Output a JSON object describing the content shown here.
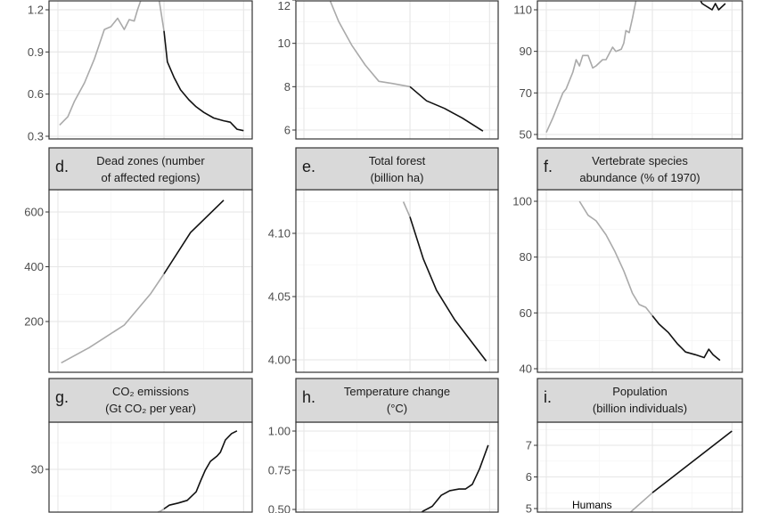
{
  "chart_data": [
    {
      "type": "line",
      "panel": "a",
      "yticks": [
        "0.3",
        "0.6",
        "0.9",
        "1.2"
      ],
      "ylim": [
        0.3,
        1.3
      ],
      "series": [
        {
          "color": "#aaaaaa",
          "x": [
            1960.5,
            1963,
            1965,
            1968,
            1971,
            1974,
            1976,
            1978,
            1980,
            1981.5,
            1983,
            1984,
            1985.5,
            1987,
            1990,
            1992
          ],
          "y": [
            0.38,
            0.44,
            0.55,
            0.68,
            0.85,
            1.06,
            1.08,
            1.14,
            1.06,
            1.13,
            1.12,
            1.2,
            1.3,
            1.4,
            1.35,
            1.05
          ]
        },
        {
          "color": "#111111",
          "x": [
            1992,
            1993,
            1995,
            1997,
            1999.5,
            2001.7,
            2004,
            2007,
            2010,
            2012,
            2014,
            2016
          ],
          "y": [
            1.05,
            0.83,
            0.72,
            0.63,
            0.56,
            0.51,
            0.47,
            0.43,
            0.41,
            0.4,
            0.35,
            0.34
          ]
        }
      ]
    },
    {
      "type": "line",
      "panel": "b",
      "yticks": [
        "6",
        "8",
        "10",
        "12"
      ],
      "ylim": [
        5.6,
        12
      ],
      "series": [
        {
          "color": "#aaaaaa",
          "x": [
            1964,
            1966.5,
            1970.5,
            1974.5,
            1978.5,
            1982.6,
            1986.6,
            1992
          ],
          "y": [
            13.5,
            12.5,
            11.0,
            9.9,
            9.0,
            8.25,
            8.15,
            8.0
          ]
        },
        {
          "color": "#111111",
          "x": [
            1992,
            1997,
            2002.4,
            2007.8,
            2014
          ],
          "y": [
            8.0,
            7.35,
            7.0,
            6.55,
            5.95
          ]
        }
      ]
    },
    {
      "type": "line",
      "panel": "c",
      "yticks": [
        "50",
        "70",
        "90",
        "110"
      ],
      "ylim": [
        48,
        115
      ],
      "series": [
        {
          "color": "#aaaaaa",
          "x": [
            1960,
            1962,
            1963.5,
            1965,
            1966,
            1968,
            1969,
            1970,
            1971,
            1972.6,
            1974,
            1975,
            1977,
            1978,
            1979,
            1980,
            1981,
            1982.6,
            1983.4,
            1984,
            1985,
            1986,
            1987,
            1988,
            1990,
            1992
          ],
          "y": [
            51,
            58,
            64,
            70,
            72,
            80,
            86,
            83,
            88,
            88,
            82,
            83,
            86,
            86,
            89,
            92,
            90,
            91,
            94,
            100,
            99,
            106,
            114,
            120,
            125,
            128
          ]
        },
        {
          "color": "#111111",
          "x": [
            1992,
            2000,
            2006,
            2007,
            2009,
            2010,
            2011,
            2012,
            2014
          ],
          "y": [
            128,
            124,
            116,
            113,
            111,
            110,
            113,
            110,
            113
          ]
        }
      ]
    },
    {
      "type": "line",
      "panel": "d",
      "title": [
        "Dead zones (number",
        "of affected regions)"
      ],
      "letter": "d.",
      "yticks": [
        "200",
        "400",
        "600"
      ],
      "ylim": [
        0,
        700
      ],
      "series": [
        {
          "color": "#aaaaaa",
          "x": [
            1961,
            1969.5,
            1980,
            1988,
            1992
          ],
          "y": [
            49,
            105,
            187,
            302,
            374
          ]
        },
        {
          "color": "#111111",
          "x": [
            1992,
            2000,
            2010
          ],
          "y": [
            374,
            525,
            643
          ]
        }
      ]
    },
    {
      "type": "line",
      "panel": "e",
      "title": [
        "Total forest",
        "(billion ha)"
      ],
      "letter": "e.",
      "yticks": [
        "4.00",
        "4.05",
        "4.10"
      ],
      "ylim": [
        3.99,
        4.135
      ],
      "series": [
        {
          "color": "#aaaaaa",
          "x": [
            1990,
            1992
          ],
          "y": [
            4.125,
            4.113
          ]
        },
        {
          "color": "#111111",
          "x": [
            1992,
            1996,
            2000,
            2005.4,
            2015
          ],
          "y": [
            4.113,
            4.08,
            4.055,
            4.032,
            3.999
          ]
        }
      ]
    },
    {
      "type": "line",
      "panel": "f",
      "title": [
        "Vertebrate species",
        "abundance (% of 1970)"
      ],
      "letter": "f.",
      "yticks": [
        "40",
        "60",
        "80",
        "100"
      ],
      "ylim": [
        40,
        102
      ],
      "series": [
        {
          "color": "#aaaaaa",
          "x": [
            1970,
            1972.6,
            1975,
            1978,
            1980.7,
            1983.4,
            1986,
            1988,
            1990,
            1992
          ],
          "y": [
            100,
            95,
            93,
            88,
            82,
            75,
            67,
            63,
            62,
            59
          ]
        },
        {
          "color": "#111111",
          "x": [
            1992,
            1994,
            1996.8,
            1999.5,
            2002,
            2005,
            2007.6,
            2009,
            2010.3,
            2012.4
          ],
          "y": [
            59,
            56,
            53,
            49,
            46,
            45,
            44,
            47,
            45,
            43
          ]
        }
      ]
    },
    {
      "type": "line",
      "panel": "g",
      "title": [
        "CO₂ emissions",
        "(Gt CO₂ per year)"
      ],
      "letter": "g.",
      "yticks": [
        "30"
      ],
      "ylim": [
        20,
        40
      ],
      "series": [
        {
          "color": "#aaaaaa",
          "x": [
            1985,
            1988,
            1991,
            1992
          ],
          "y": [
            20.5,
            21.5,
            22.2,
            22.6
          ]
        },
        {
          "color": "#111111",
          "x": [
            1992,
            1993.6,
            1996.3,
            1999,
            2001.7,
            2003,
            2004.4,
            2006,
            2008,
            2009,
            2010.5,
            2012.4,
            2014
          ],
          "y": [
            22.6,
            23.3,
            23.7,
            24.2,
            25.8,
            27.8,
            29.8,
            31.5,
            32.5,
            33.2,
            35.5,
            36.7,
            37.2
          ]
        }
      ]
    },
    {
      "type": "line",
      "panel": "h",
      "title": [
        "Temperature change",
        "(°C)"
      ],
      "letter": "h.",
      "yticks": [
        "0.50",
        "0.75",
        "1.00"
      ],
      "ylim": [
        0.45,
        1.02
      ],
      "series": [
        {
          "color": "#111111",
          "x": [
            1993,
            1994.7,
            1996,
            1998.7,
            2001.4,
            2004,
            2006.8,
            2008.7,
            2010.8,
            2013,
            2015.6
          ],
          "y": [
            0.44,
            0.47,
            0.49,
            0.52,
            0.59,
            0.62,
            0.63,
            0.63,
            0.66,
            0.76,
            0.91
          ]
        }
      ]
    },
    {
      "type": "line",
      "panel": "i",
      "title": [
        "Population",
        "(billion individuals)"
      ],
      "letter": "i.",
      "yticks": [
        "5",
        "6",
        "7"
      ],
      "ylim": [
        4.8,
        7.6
      ],
      "annotation": "Humans",
      "series": [
        {
          "color": "#aaaaaa",
          "x": [
            1983,
            1985,
            1992
          ],
          "y": [
            4.7,
            4.85,
            5.5
          ]
        },
        {
          "color": "#111111",
          "x": [
            1992,
            2016
          ],
          "y": [
            5.5,
            7.45
          ]
        }
      ]
    }
  ]
}
